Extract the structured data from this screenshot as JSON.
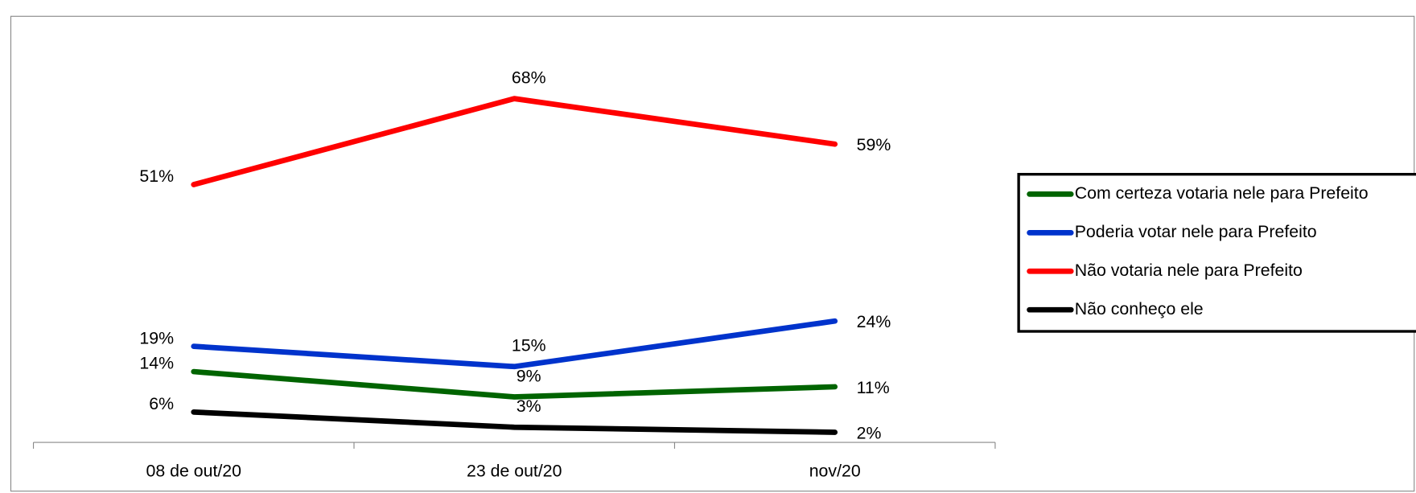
{
  "chart_data": {
    "type": "line",
    "categories": [
      "08 de out/20",
      "23 de out/20",
      "nov/20"
    ],
    "series": [
      {
        "name": "Com certeza votaria nele para Prefeito",
        "color": "#006400",
        "values": [
          14,
          9,
          11
        ],
        "value_labels": [
          "14%",
          "9%",
          "11%"
        ]
      },
      {
        "name": "Poderia votar nele para Prefeito",
        "color": "#0033cc",
        "values": [
          19,
          15,
          24
        ],
        "value_labels": [
          "19%",
          "15%",
          "24%"
        ]
      },
      {
        "name": "Não votaria nele para Prefeito",
        "color": "#ff0000",
        "values": [
          51,
          68,
          59
        ],
        "value_labels": [
          "51%",
          "68%",
          "59%"
        ]
      },
      {
        "name": "Não conheço ele",
        "color": "#000000",
        "values": [
          6,
          3,
          2
        ],
        "value_labels": [
          "6%",
          "3%",
          "2%"
        ]
      }
    ],
    "ylim": [
      0,
      80
    ],
    "legend": "right"
  }
}
